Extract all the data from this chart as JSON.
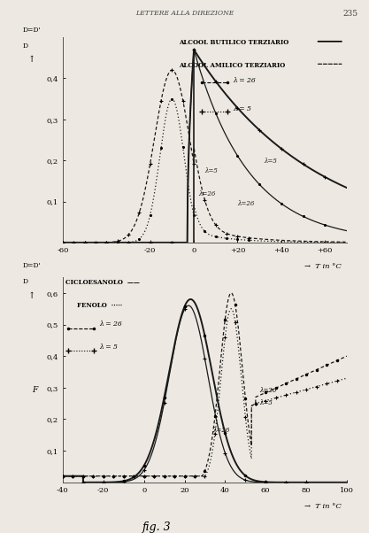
{
  "fig2": {
    "xlim": [
      -60,
      70
    ],
    "ylim": [
      0,
      0.5
    ],
    "yticks": [
      0.1,
      0.2,
      0.3,
      0.4
    ],
    "ytick_labels": [
      "0,1",
      "0,2",
      "0,3",
      "0,4"
    ],
    "xticks": [
      -60,
      -20,
      0,
      20,
      40,
      60
    ],
    "xtick_labels": [
      "-60",
      "-20",
      "0",
      "+20",
      "+40",
      "+60"
    ]
  },
  "fig3": {
    "xlim": [
      -40,
      100
    ],
    "ylim": [
      0,
      0.65
    ],
    "yticks": [
      0.1,
      0.2,
      0.3,
      0.4,
      0.5,
      0.6
    ],
    "ytick_labels": [
      "0,1",
      "0,2",
      "0,3",
      "0,4",
      "0,5",
      "0,6"
    ],
    "xticks": [
      -40,
      -20,
      0,
      20,
      40,
      60,
      80,
      100
    ],
    "xtick_labels": [
      "-40",
      "-20",
      "0",
      "20",
      "40",
      "60",
      "80",
      "100"
    ]
  },
  "page_header": "LETTERE ALLA DIREZIONE",
  "page_number": "235",
  "bg_color": "#ede9e2",
  "line_color": "#1a1a1a"
}
